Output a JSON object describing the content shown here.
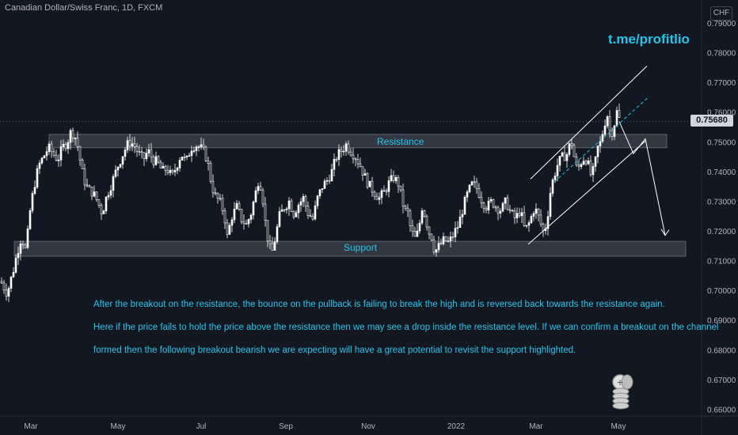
{
  "header": {
    "symbol": "Canadian Dollar/Swiss Franc, 1D, FXCM",
    "currency": "CHF",
    "telegram": "t.me/profitlio"
  },
  "annotations": {
    "resistance_label": "Resistance",
    "support_label": "Support",
    "line1": "After the breakout on the resistance, the bounce on the pullback is failing to break the high and is reversed back towards the resistance again.",
    "line2": "Here if the price fails to hold the price above the resistance then we may see a drop inside the resistance level. If we can confirm a breakout on the channel",
    "line3": "formed then the following breakout bearish we are expecting will have a great potential to revisit the support highlighted."
  },
  "colors": {
    "background": "#131722",
    "candle": "#ffffff",
    "accent_text": "#22c5e8",
    "zone": "#3a3d47"
  },
  "chart_data": {
    "type": "candlestick",
    "instrument": "Canadian Dollar/Swiss Franc",
    "timeframe": "1D",
    "x_ticks": [
      "Mar",
      "May",
      "Jul",
      "Sep",
      "Nov",
      "2022",
      "Mar",
      "May"
    ],
    "y_ticks": [
      "0.79000",
      "0.78000",
      "0.77000",
      "0.76000",
      "0.75000",
      "0.74000",
      "0.73000",
      "0.72000",
      "0.71000",
      "0.70000",
      "0.69000",
      "0.68000",
      "0.67000",
      "0.66000"
    ],
    "ylim": [
      0.6595,
      0.7935
    ],
    "last_price": "0.75680",
    "zones": [
      {
        "name": "Resistance",
        "from": 0.748,
        "to": 0.7525
      },
      {
        "name": "Support",
        "from": 0.7115,
        "to": 0.7165
      }
    ],
    "price_path": [
      [
        0,
        0.703
      ],
      [
        4,
        0.701
      ],
      [
        8,
        0.699
      ],
      [
        12,
        0.703
      ],
      [
        16,
        0.707
      ],
      [
        20,
        0.712
      ],
      [
        26,
        0.718
      ],
      [
        32,
        0.713
      ],
      [
        36,
        0.725
      ],
      [
        42,
        0.735
      ],
      [
        48,
        0.742
      ],
      [
        54,
        0.745
      ],
      [
        60,
        0.748
      ],
      [
        66,
        0.746
      ],
      [
        72,
        0.744
      ],
      [
        78,
        0.748
      ],
      [
        84,
        0.75
      ],
      [
        88,
        0.753
      ],
      [
        92,
        0.753
      ],
      [
        96,
        0.75
      ],
      [
        100,
        0.744
      ],
      [
        104,
        0.738
      ],
      [
        110,
        0.734
      ],
      [
        116,
        0.733
      ],
      [
        122,
        0.73
      ],
      [
        128,
        0.726
      ],
      [
        134,
        0.732
      ],
      [
        140,
        0.736
      ],
      [
        148,
        0.742
      ],
      [
        156,
        0.747
      ],
      [
        162,
        0.75
      ],
      [
        168,
        0.749
      ],
      [
        174,
        0.746
      ],
      [
        180,
        0.744
      ],
      [
        186,
        0.747
      ],
      [
        192,
        0.744
      ],
      [
        198,
        0.743
      ],
      [
        204,
        0.74
      ],
      [
        210,
        0.741
      ],
      [
        216,
        0.738
      ],
      [
        222,
        0.742
      ],
      [
        228,
        0.746
      ],
      [
        234,
        0.743
      ],
      [
        240,
        0.748
      ],
      [
        246,
        0.749
      ],
      [
        252,
        0.748
      ],
      [
        258,
        0.746
      ],
      [
        262,
        0.742
      ],
      [
        266,
        0.736
      ],
      [
        270,
        0.732
      ],
      [
        276,
        0.73
      ],
      [
        282,
        0.726
      ],
      [
        286,
        0.718
      ],
      [
        292,
        0.725
      ],
      [
        298,
        0.728
      ],
      [
        304,
        0.724
      ],
      [
        310,
        0.722
      ],
      [
        316,
        0.726
      ],
      [
        322,
        0.733
      ],
      [
        326,
        0.738
      ],
      [
        330,
        0.733
      ],
      [
        334,
        0.723
      ],
      [
        338,
        0.716
      ],
      [
        342,
        0.712
      ],
      [
        346,
        0.717
      ],
      [
        352,
        0.725
      ],
      [
        358,
        0.728
      ],
      [
        364,
        0.73
      ],
      [
        370,
        0.726
      ],
      [
        376,
        0.729
      ],
      [
        382,
        0.731
      ],
      [
        388,
        0.726
      ],
      [
        394,
        0.724
      ],
      [
        400,
        0.731
      ],
      [
        406,
        0.735
      ],
      [
        412,
        0.737
      ],
      [
        418,
        0.74
      ],
      [
        424,
        0.745
      ],
      [
        430,
        0.747
      ],
      [
        436,
        0.749
      ],
      [
        442,
        0.747
      ],
      [
        448,
        0.745
      ],
      [
        454,
        0.742
      ],
      [
        460,
        0.738
      ],
      [
        466,
        0.735
      ],
      [
        472,
        0.733
      ],
      [
        478,
        0.731
      ],
      [
        484,
        0.733
      ],
      [
        490,
        0.736
      ],
      [
        496,
        0.738
      ],
      [
        502,
        0.736
      ],
      [
        506,
        0.731
      ],
      [
        510,
        0.727
      ],
      [
        514,
        0.726
      ],
      [
        518,
        0.72
      ],
      [
        524,
        0.717
      ],
      [
        528,
        0.721
      ],
      [
        532,
        0.728
      ],
      [
        536,
        0.725
      ],
      [
        540,
        0.72
      ],
      [
        544,
        0.718
      ],
      [
        548,
        0.713
      ],
      [
        554,
        0.715
      ],
      [
        560,
        0.717
      ],
      [
        566,
        0.716
      ],
      [
        572,
        0.719
      ],
      [
        578,
        0.722
      ],
      [
        584,
        0.728
      ],
      [
        590,
        0.733
      ],
      [
        596,
        0.736
      ],
      [
        602,
        0.734
      ],
      [
        608,
        0.73
      ],
      [
        614,
        0.728
      ],
      [
        620,
        0.73
      ],
      [
        626,
        0.728
      ],
      [
        632,
        0.727
      ],
      [
        638,
        0.73
      ],
      [
        644,
        0.726
      ],
      [
        650,
        0.724
      ],
      [
        656,
        0.727
      ],
      [
        662,
        0.72
      ],
      [
        668,
        0.723
      ],
      [
        674,
        0.728
      ],
      [
        680,
        0.724
      ],
      [
        686,
        0.719
      ],
      [
        690,
        0.724
      ],
      [
        694,
        0.733
      ],
      [
        698,
        0.738
      ],
      [
        704,
        0.743
      ],
      [
        710,
        0.745
      ],
      [
        716,
        0.746
      ],
      [
        720,
        0.751
      ],
      [
        724,
        0.745
      ],
      [
        728,
        0.74
      ],
      [
        732,
        0.743
      ],
      [
        738,
        0.745
      ],
      [
        742,
        0.742
      ],
      [
        746,
        0.738
      ],
      [
        750,
        0.742
      ],
      [
        754,
        0.748
      ],
      [
        758,
        0.75
      ],
      [
        762,
        0.756
      ],
      [
        766,
        0.759
      ],
      [
        770,
        0.752
      ],
      [
        774,
        0.755
      ],
      [
        778,
        0.76
      ],
      [
        782,
        0.757
      ]
    ],
    "channel": {
      "upper": [
        [
          670,
          0.7375
        ],
        [
          817,
          0.7755
        ]
      ],
      "lower": [
        [
          667,
          0.7155
        ],
        [
          816,
          0.7505
        ]
      ]
    },
    "projection": [
      [
        782,
        0.7568
      ],
      [
        800,
        0.746
      ],
      [
        815,
        0.751
      ],
      [
        840,
        0.7185
      ]
    ]
  }
}
